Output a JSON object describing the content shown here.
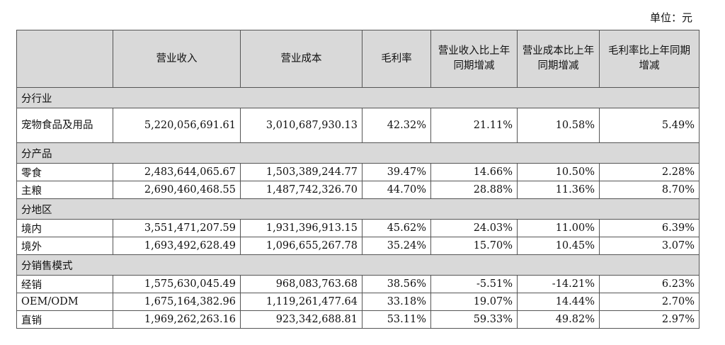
{
  "unit_label": "单位：元",
  "headers": [
    "",
    "营业收入",
    "营业成本",
    "毛利率",
    "营业收入比上年同期增减",
    "营业成本比上年同期增减",
    "毛利率比上年同期增减"
  ],
  "sections": [
    {
      "title": "分行业",
      "rows": [
        {
          "label": "宠物食品及用品",
          "values": [
            "5,220,056,691.61",
            "3,010,687,930.13",
            "42.32%",
            "21.11%",
            "10.58%",
            "5.49%"
          ]
        }
      ]
    },
    {
      "title": "分产品",
      "rows": [
        {
          "label": "零食",
          "values": [
            "2,483,644,065.67",
            "1,503,389,244.77",
            "39.47%",
            "14.66%",
            "10.50%",
            "2.28%"
          ]
        },
        {
          "label": "主粮",
          "values": [
            "2,690,460,468.55",
            "1,487,742,326.70",
            "44.70%",
            "28.88%",
            "11.36%",
            "8.70%"
          ]
        }
      ]
    },
    {
      "title": "分地区",
      "rows": [
        {
          "label": "境内",
          "values": [
            "3,551,471,207.59",
            "1,931,396,913.15",
            "45.62%",
            "24.03%",
            "11.00%",
            "6.39%"
          ]
        },
        {
          "label": "境外",
          "values": [
            "1,693,492,628.49",
            "1,096,655,267.78",
            "35.24%",
            "15.70%",
            "10.45%",
            "3.07%"
          ]
        }
      ]
    },
    {
      "title": "分销售模式",
      "rows": [
        {
          "label": "经销",
          "values": [
            "1,575,630,045.49",
            "968,083,763.68",
            "38.56%",
            "-5.51%",
            "-14.21%",
            "6.23%"
          ]
        },
        {
          "label": "OEM/ODM",
          "values": [
            "1,675,164,382.96",
            "1,119,261,477.64",
            "33.18%",
            "19.07%",
            "14.44%",
            "2.70%"
          ]
        },
        {
          "label": "直销",
          "values": [
            "1,969,262,263.16",
            "923,342,688.81",
            "53.11%",
            "59.33%",
            "49.82%",
            "2.97%"
          ]
        }
      ]
    }
  ]
}
